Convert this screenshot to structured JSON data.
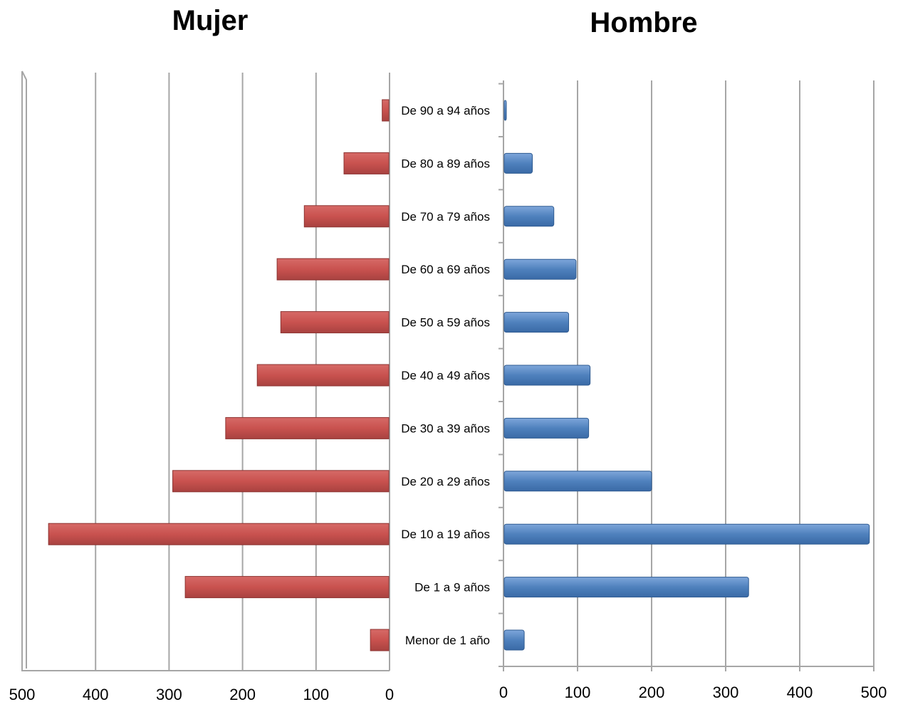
{
  "chart_data": [
    {
      "type": "bar",
      "title": "Mujer",
      "orientation": "horizontal",
      "direction": "right-to-left",
      "categories": [
        "Menor de 1 año",
        "De 1 a 9 años",
        "De 10 a 19 años",
        "De 20 a 29 años",
        "De 30 a 39 años",
        "De 40 a 49 años",
        "De 50 a 59 años",
        "De 60 a 69 años",
        "De 70 a 79 años",
        "De 80 a 89 años",
        "De 90 a 94 años"
      ],
      "values": [
        26,
        278,
        464,
        295,
        223,
        180,
        148,
        153,
        116,
        62,
        10
      ],
      "xlim": [
        0,
        500
      ],
      "xticks": [
        "500",
        "400",
        "300",
        "200",
        "100",
        "0"
      ],
      "color": "#c0504d",
      "grid": true
    },
    {
      "type": "bar",
      "title": "Hombre",
      "orientation": "horizontal",
      "direction": "left-to-right",
      "categories": [
        "Menor de 1 año",
        "De 1 a 9 años",
        "De 10 a 19 años",
        "De 20 a 29 años",
        "De 30 a 39 años",
        "De 40 a 49 años",
        "De 50 a 59 años",
        "De 60 a 69 años",
        "De 70 a 79 años",
        "De 80 a 89 años",
        "De 90 a 94 años"
      ],
      "values": [
        28,
        331,
        494,
        200,
        115,
        117,
        88,
        98,
        68,
        39,
        1
      ],
      "xlim": [
        0,
        500
      ],
      "xticks": [
        "0",
        "100",
        "200",
        "300",
        "400",
        "500"
      ],
      "color": "#4f81bd",
      "grid": true
    }
  ]
}
